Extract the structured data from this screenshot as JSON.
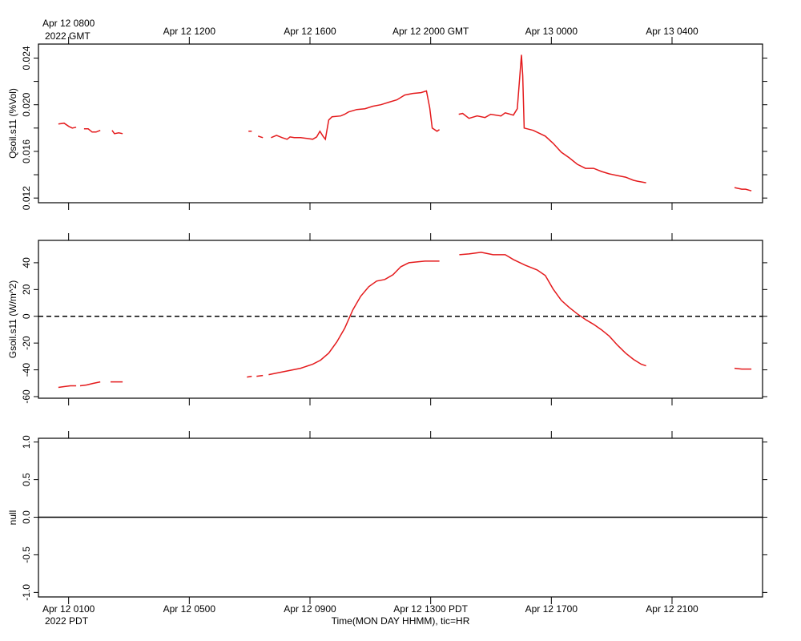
{
  "time_axis": {
    "xlim": [
      0,
      24
    ],
    "xticks": [
      {
        "value": 1,
        "label": "Apr 12 0100"
      },
      {
        "value": 5,
        "label": "Apr 12 0500"
      },
      {
        "value": 9,
        "label": "Apr 12 0900"
      },
      {
        "value": 13,
        "label": "Apr 12 1300 PDT"
      },
      {
        "value": 17,
        "label": "Apr 12 1700"
      },
      {
        "value": 21,
        "label": "Apr 12 2100"
      }
    ],
    "top_xticks": [
      {
        "value": 1,
        "label": "Apr 12 0800"
      },
      {
        "value": 5,
        "label": "Apr 12 1200"
      },
      {
        "value": 9,
        "label": "Apr 12 1600"
      },
      {
        "value": 13,
        "label": "Apr 12 2000 GMT"
      },
      {
        "value": 17,
        "label": "Apr 13 0000"
      },
      {
        "value": 21,
        "label": "Apr 13 0400"
      }
    ],
    "bottom_year": "2022 PDT",
    "top_year": "2022 GMT",
    "xlabel": "Time(MON DAY HHMM), tic=HR"
  },
  "chart_data": [
    {
      "type": "line",
      "ylabel": "Qsoil.s11 (%Vol)",
      "ylim": [
        0.0116,
        0.0252
      ],
      "yticks": [
        0.012,
        0.016,
        {
          "value": 0.02,
          "label": "0.020"
        },
        0.024
      ],
      "yminor": [
        0.014,
        0.018,
        0.022
      ],
      "x": [
        0.66,
        0.85,
        1.01,
        1.12,
        1.25,
        1.4,
        1.51,
        1.65,
        1.78,
        1.91,
        2.05,
        2.3,
        2.44,
        2.52,
        2.66,
        2.79,
        5,
        6.96,
        7.07,
        7.2,
        7.28,
        7.44,
        7.6,
        7.71,
        7.89,
        8.08,
        8.24,
        8.34,
        8.48,
        8.69,
        8.9,
        9.09,
        9.22,
        9.33,
        9.43,
        9.51,
        9.62,
        9.73,
        10.02,
        10.15,
        10.28,
        10.55,
        10.82,
        11.08,
        11.35,
        11.61,
        11.88,
        12.14,
        12.41,
        12.68,
        12.86,
        12.97,
        13.05,
        13.21,
        13.29,
        13.6,
        13.93,
        14.06,
        14.27,
        14.54,
        14.8,
        14.99,
        15.33,
        15.47,
        15.74,
        15.87,
        16.01,
        16.05,
        16.1,
        16.4,
        16.8,
        17.06,
        17.33,
        17.59,
        17.86,
        18.13,
        18.4,
        18.66,
        18.92,
        19.19,
        19.46,
        19.72,
        19.85,
        20.14,
        21.5,
        23.07,
        23.31,
        23.44,
        23.63
      ],
      "series": [
        {
          "name": "Qsoil.s11",
          "color": "#e41a1c",
          "values": [
            0.01835,
            0.01842,
            0.01814,
            0.018,
            0.01807,
            null,
            0.01793,
            0.01793,
            0.01766,
            0.01766,
            0.0178,
            null,
            0.0178,
            0.01752,
            0.01759,
            0.01752,
            null,
            0.01773,
            0.01773,
            null,
            0.01731,
            0.01718,
            null,
            0.01718,
            0.01738,
            0.01718,
            0.01704,
            0.01724,
            0.01718,
            0.01718,
            0.01711,
            0.01704,
            0.01724,
            0.01773,
            0.01731,
            0.01704,
            0.01869,
            0.01897,
            0.01904,
            0.01918,
            0.01938,
            0.01959,
            0.01966,
            0.01987,
            0.02,
            0.02021,
            0.02042,
            0.02083,
            0.02097,
            0.02104,
            0.02118,
            0.01973,
            0.018,
            0.01773,
            0.01787,
            null,
            0.01918,
            0.01925,
            0.01883,
            0.01904,
            0.0189,
            0.01918,
            0.01904,
            0.01931,
            0.01911,
            0.01966,
            0.02428,
            0.02249,
            0.018,
            0.0178,
            0.01731,
            0.01669,
            0.01593,
            0.01545,
            0.0149,
            0.01455,
            0.01455,
            0.01428,
            0.01407,
            0.01393,
            0.01379,
            0.01352,
            0.01345,
            0.01331,
            null,
            0.0129,
            0.01276,
            0.01276,
            0.01262
          ]
        }
      ]
    },
    {
      "type": "line",
      "ylabel": "Gsoil.s11 (W/m^2)",
      "ylim": [
        -61.2,
        56.7
      ],
      "yticks": [
        -60,
        -40,
        -20,
        0,
        20,
        40
      ],
      "zero_line": "dashed",
      "x": [
        0.66,
        0.85,
        1.06,
        1.25,
        1.3,
        1.38,
        1.59,
        1.81,
        2.05,
        2.2,
        2.39,
        2.58,
        2.79,
        5,
        6.91,
        7.07,
        7.15,
        7.23,
        7.44,
        7.55,
        7.63,
        7.89,
        8.29,
        8.69,
        9.09,
        9.35,
        9.62,
        9.89,
        10.15,
        10.42,
        10.68,
        10.95,
        11.21,
        11.48,
        11.75,
        12.01,
        12.28,
        12.54,
        12.81,
        13.07,
        13.29,
        13.6,
        13.95,
        14.27,
        14.67,
        15.07,
        15.47,
        15.74,
        16.13,
        16.53,
        16.8,
        17.06,
        17.33,
        17.59,
        17.86,
        18.13,
        18.4,
        18.66,
        18.92,
        19.19,
        19.46,
        19.72,
        19.98,
        20.14,
        21.5,
        23.07,
        23.31,
        23.63
      ],
      "series": [
        {
          "name": "Gsoil.s11",
          "color": "#e41a1c",
          "values": [
            -53.1,
            -52.5,
            -51.9,
            -51.9,
            null,
            -51.9,
            -51.3,
            -50.1,
            -49.0,
            null,
            -49.0,
            -49.0,
            -49.0,
            null,
            -45.4,
            -44.8,
            null,
            -44.8,
            -44.2,
            null,
            -43.6,
            -42.4,
            -40.6,
            -38.8,
            -35.8,
            -32.8,
            -27.5,
            -19.1,
            -9.0,
            4.8,
            14.9,
            22.1,
            26.3,
            27.5,
            31.0,
            37.0,
            40.0,
            40.6,
            41.2,
            41.2,
            41.2,
            null,
            46.0,
            46.6,
            47.8,
            46.0,
            46.0,
            42.4,
            38.2,
            34.6,
            30.4,
            20.3,
            11.9,
            6.6,
            1.8,
            -2.4,
            -6.0,
            -10.1,
            -14.9,
            -21.5,
            -27.5,
            -32.2,
            -35.8,
            -37.0,
            null,
            -38.8,
            -39.4,
            -39.4
          ]
        }
      ]
    },
    {
      "type": "line",
      "ylabel": "null",
      "ylim": [
        -1.06,
        1.05
      ],
      "yticks": [
        {
          "value": -1,
          "label": "-1.0"
        },
        {
          "value": -0.5,
          "label": "-0.5"
        },
        {
          "value": 0,
          "label": "0.0"
        },
        {
          "value": 0.5,
          "label": "0.5"
        },
        {
          "value": 1,
          "label": "1.0"
        }
      ],
      "zero_line": "solid",
      "x": [],
      "series": []
    }
  ]
}
